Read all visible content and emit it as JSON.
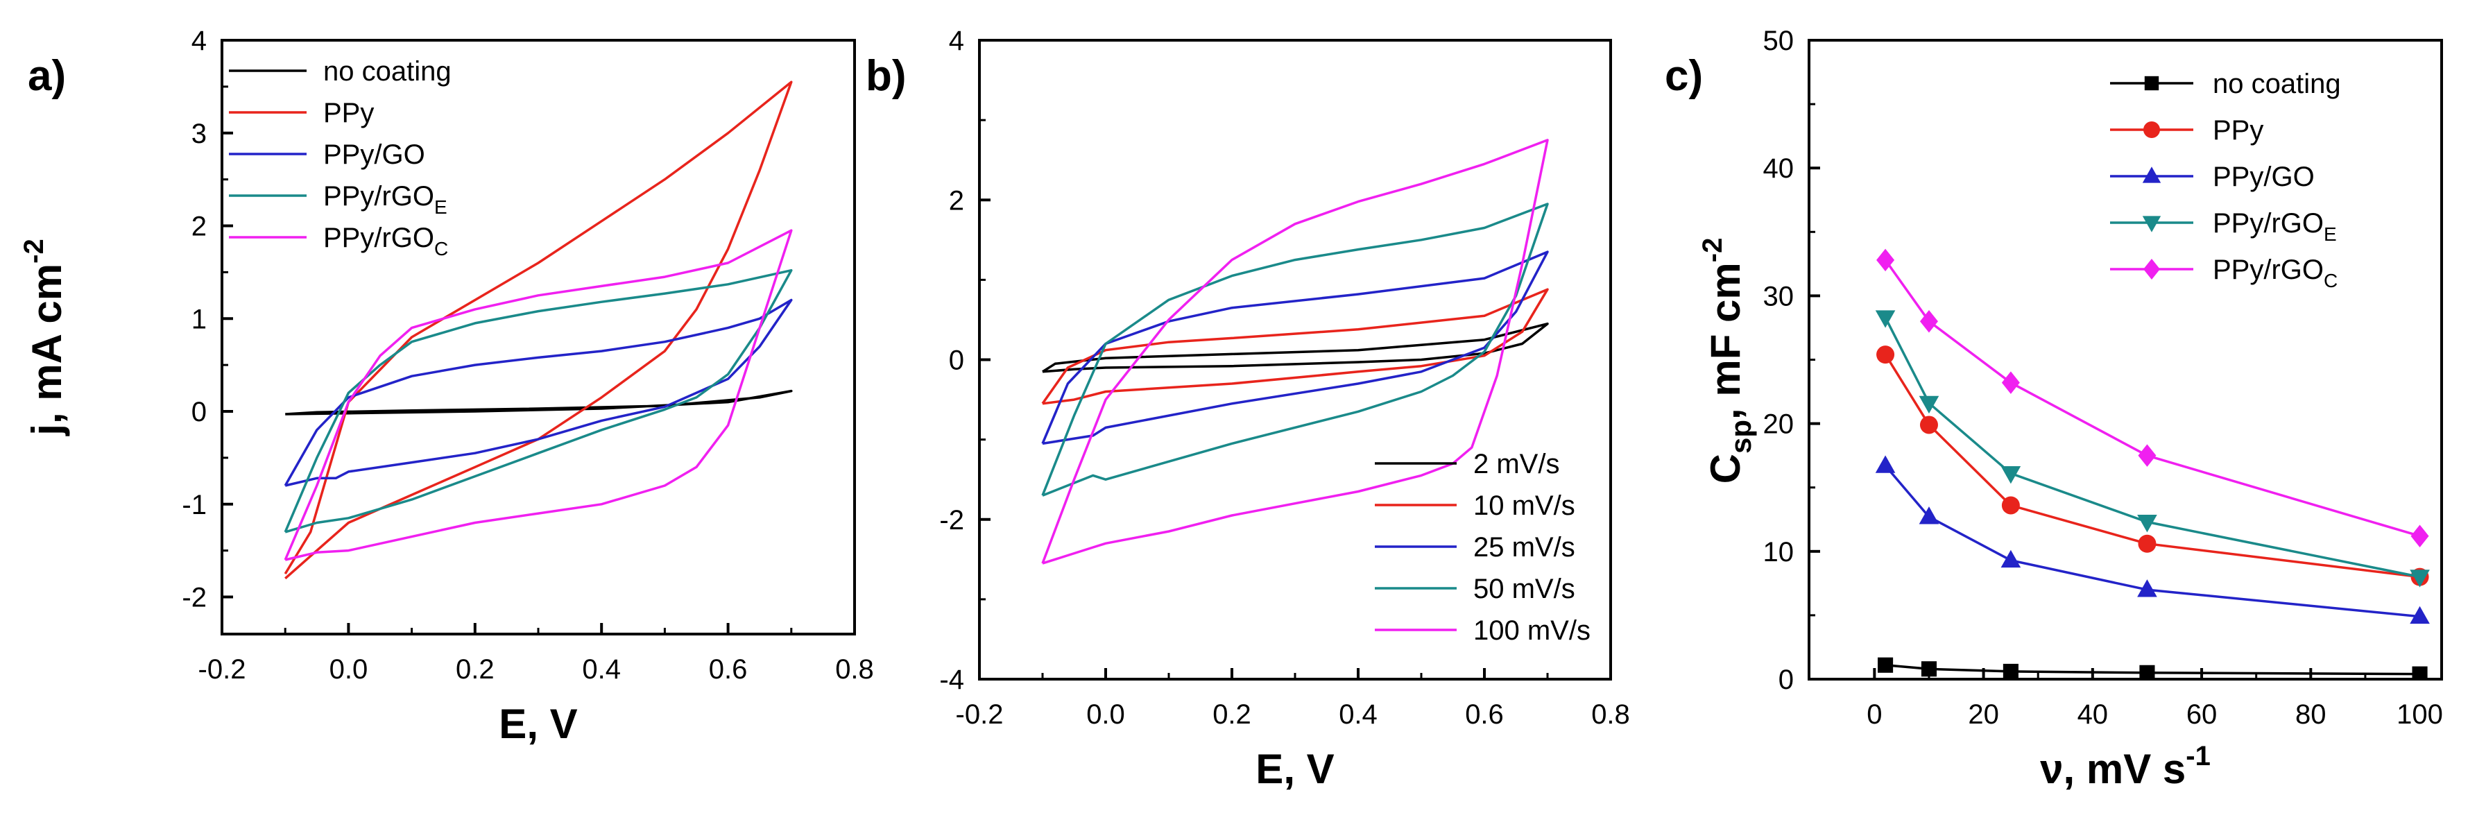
{
  "chart_data": [
    {
      "panel": "a)",
      "type": "line",
      "title": "",
      "xlabel": "E, V",
      "ylabel": "j, mA cm",
      "ylabel_sup": "-2",
      "xlim": [
        -0.2,
        0.8
      ],
      "ylim": [
        -2.4,
        4
      ],
      "xticks": [
        -0.2,
        0.0,
        0.2,
        0.4,
        0.6,
        0.8
      ],
      "xtick_labels": [
        "-0.2",
        "0.0",
        "0.2",
        "0.4",
        "0.6",
        "0.8"
      ],
      "yticks": [
        -2,
        -1,
        0,
        1,
        2,
        3,
        4
      ],
      "ytick_labels": [
        "-2",
        "-1",
        "0",
        "1",
        "2",
        "3",
        "4"
      ],
      "legend_position": "top-left",
      "series": [
        {
          "name": "no coating",
          "sub": "",
          "color": "#000000",
          "x": [
            -0.1,
            0.0,
            0.2,
            0.4,
            0.6,
            0.7,
            0.65,
            0.5,
            0.3,
            0.1,
            -0.05,
            -0.1
          ],
          "y": [
            -0.03,
            -0.02,
            0.0,
            0.03,
            0.1,
            0.22,
            0.15,
            0.06,
            0.03,
            0.01,
            -0.01,
            -0.03
          ]
        },
        {
          "name": "PPy",
          "sub": "",
          "color": "#e8241c",
          "x": [
            -0.1,
            -0.06,
            0.0,
            0.1,
            0.2,
            0.3,
            0.4,
            0.5,
            0.6,
            0.7,
            0.65,
            0.6,
            0.55,
            0.5,
            0.4,
            0.3,
            0.2,
            0.1,
            0.0,
            -0.05,
            -0.1
          ],
          "y": [
            -1.75,
            -1.3,
            0.1,
            0.8,
            1.2,
            1.6,
            2.05,
            2.5,
            3.0,
            3.55,
            2.6,
            1.75,
            1.1,
            0.65,
            0.15,
            -0.3,
            -0.6,
            -0.9,
            -1.2,
            -1.5,
            -1.8
          ]
        },
        {
          "name": "PPy/GO",
          "sub": "",
          "color": "#2323c8",
          "x": [
            -0.1,
            -0.05,
            0.0,
            0.1,
            0.2,
            0.3,
            0.4,
            0.5,
            0.6,
            0.65,
            0.7,
            0.65,
            0.6,
            0.5,
            0.4,
            0.3,
            0.2,
            0.1,
            0.0,
            -0.02,
            -0.05,
            -0.1
          ],
          "y": [
            -0.8,
            -0.2,
            0.15,
            0.38,
            0.5,
            0.58,
            0.65,
            0.75,
            0.9,
            1.0,
            1.2,
            0.7,
            0.35,
            0.05,
            -0.1,
            -0.3,
            -0.45,
            -0.55,
            -0.65,
            -0.72,
            -0.72,
            -0.8
          ]
        },
        {
          "name": "PPy/rGO",
          "sub": "E",
          "color": "#1a8a8a",
          "x": [
            -0.1,
            -0.05,
            0.0,
            0.05,
            0.1,
            0.2,
            0.3,
            0.4,
            0.5,
            0.6,
            0.7,
            0.65,
            0.6,
            0.55,
            0.5,
            0.4,
            0.3,
            0.2,
            0.1,
            0.0,
            -0.05,
            -0.1
          ],
          "y": [
            -1.3,
            -0.5,
            0.2,
            0.5,
            0.75,
            0.95,
            1.08,
            1.18,
            1.27,
            1.37,
            1.52,
            0.9,
            0.4,
            0.15,
            0.02,
            -0.2,
            -0.45,
            -0.7,
            -0.95,
            -1.15,
            -1.2,
            -1.3
          ]
        },
        {
          "name": "PPy/rGO",
          "sub": "C",
          "color": "#f020f0",
          "x": [
            -0.1,
            -0.05,
            0.0,
            0.05,
            0.1,
            0.2,
            0.3,
            0.4,
            0.5,
            0.6,
            0.7,
            0.65,
            0.6,
            0.55,
            0.5,
            0.4,
            0.3,
            0.2,
            0.1,
            0.0,
            -0.05,
            -0.1
          ],
          "y": [
            -1.6,
            -0.8,
            0.1,
            0.6,
            0.9,
            1.1,
            1.25,
            1.35,
            1.45,
            1.6,
            1.95,
            0.9,
            -0.15,
            -0.6,
            -0.8,
            -1.0,
            -1.1,
            -1.2,
            -1.35,
            -1.5,
            -1.52,
            -1.6
          ]
        }
      ]
    },
    {
      "panel": "b)",
      "type": "line",
      "title": "",
      "xlabel": "E, V",
      "ylabel": "",
      "xlim": [
        -0.2,
        0.8
      ],
      "ylim": [
        -4,
        4
      ],
      "xticks": [
        -0.2,
        0.0,
        0.2,
        0.4,
        0.6,
        0.8
      ],
      "xtick_labels": [
        "-0.2",
        "0.0",
        "0.2",
        "0.4",
        "0.6",
        "0.8"
      ],
      "yticks": [
        -4,
        -2,
        0,
        2,
        4
      ],
      "ytick_labels": [
        "-4",
        "-2",
        "0",
        "2",
        "4"
      ],
      "legend_position": "bottom-right",
      "series": [
        {
          "name": "2 mV/s",
          "color": "#000000",
          "x": [
            -0.1,
            -0.08,
            0.0,
            0.2,
            0.4,
            0.6,
            0.7,
            0.66,
            0.6,
            0.5,
            0.4,
            0.2,
            0.0,
            -0.05,
            -0.1
          ],
          "y": [
            -0.15,
            -0.05,
            0.02,
            0.07,
            0.12,
            0.25,
            0.45,
            0.2,
            0.08,
            0.0,
            -0.03,
            -0.08,
            -0.1,
            -0.12,
            -0.15
          ]
        },
        {
          "name": "10 mV/s",
          "color": "#e8241c",
          "x": [
            -0.1,
            -0.06,
            0.0,
            0.1,
            0.2,
            0.4,
            0.6,
            0.7,
            0.66,
            0.6,
            0.5,
            0.4,
            0.2,
            0.0,
            -0.05,
            -0.1
          ],
          "y": [
            -0.55,
            -0.1,
            0.12,
            0.22,
            0.27,
            0.38,
            0.55,
            0.88,
            0.35,
            0.05,
            -0.08,
            -0.15,
            -0.3,
            -0.4,
            -0.5,
            -0.55
          ]
        },
        {
          "name": "25 mV/s",
          "color": "#2323c8",
          "x": [
            -0.1,
            -0.06,
            0.0,
            0.1,
            0.2,
            0.4,
            0.6,
            0.7,
            0.65,
            0.6,
            0.5,
            0.4,
            0.2,
            0.0,
            -0.02,
            -0.1
          ],
          "y": [
            -1.05,
            -0.3,
            0.2,
            0.48,
            0.65,
            0.82,
            1.02,
            1.35,
            0.6,
            0.15,
            -0.15,
            -0.3,
            -0.55,
            -0.85,
            -0.95,
            -1.05
          ]
        },
        {
          "name": "50 mV/s",
          "color": "#1a8a8a",
          "x": [
            -0.1,
            -0.05,
            0.0,
            0.1,
            0.2,
            0.3,
            0.4,
            0.5,
            0.6,
            0.7,
            0.65,
            0.6,
            0.55,
            0.5,
            0.4,
            0.2,
            0.0,
            -0.02,
            -0.1
          ],
          "y": [
            -1.7,
            -0.7,
            0.2,
            0.75,
            1.05,
            1.25,
            1.38,
            1.5,
            1.65,
            1.95,
            0.8,
            0.1,
            -0.2,
            -0.4,
            -0.65,
            -1.05,
            -1.5,
            -1.45,
            -1.7
          ]
        },
        {
          "name": "100 mV/s",
          "color": "#f020f0",
          "x": [
            -0.1,
            -0.05,
            0.0,
            0.1,
            0.2,
            0.3,
            0.4,
            0.5,
            0.6,
            0.7,
            0.66,
            0.62,
            0.58,
            0.55,
            0.5,
            0.4,
            0.3,
            0.2,
            0.1,
            0.0,
            -0.02,
            -0.1
          ],
          "y": [
            -2.55,
            -1.5,
            -0.5,
            0.5,
            1.25,
            1.7,
            1.98,
            2.2,
            2.45,
            2.75,
            1.2,
            -0.2,
            -1.1,
            -1.3,
            -1.45,
            -1.65,
            -1.8,
            -1.95,
            -2.15,
            -2.3,
            -2.35,
            -2.55
          ]
        }
      ]
    },
    {
      "panel": "c)",
      "type": "line",
      "title": "",
      "xlabel": "ν, mV s",
      "xlabel_sup": "-1",
      "ylabel": "C",
      "ylabel_sub": "sp",
      "ylabel_rest": ", mF cm",
      "ylabel_sup": "-2",
      "xlim": [
        -12,
        104
      ],
      "ylim": [
        0,
        50
      ],
      "xticks": [
        0,
        20,
        40,
        60,
        80,
        100
      ],
      "xtick_labels": [
        "0",
        "20",
        "40",
        "60",
        "80",
        "100"
      ],
      "yticks": [
        0,
        10,
        20,
        30,
        40,
        50
      ],
      "ytick_labels": [
        "0",
        "10",
        "20",
        "30",
        "40",
        "50"
      ],
      "legend_position": "top-right",
      "x": [
        2,
        10,
        25,
        50,
        100
      ],
      "series": [
        {
          "name": "no coating",
          "sub": "",
          "color": "#000000",
          "marker": "square",
          "values": [
            1.1,
            0.8,
            0.6,
            0.5,
            0.4
          ]
        },
        {
          "name": "PPy",
          "sub": "",
          "color": "#e8241c",
          "marker": "circle",
          "values": [
            25.4,
            19.9,
            13.6,
            10.6,
            8.0
          ]
        },
        {
          "name": "PPy/GO",
          "sub": "",
          "color": "#2323c8",
          "marker": "triangle-up",
          "values": [
            16.7,
            12.7,
            9.3,
            7.0,
            4.9
          ]
        },
        {
          "name": "PPy/rGO",
          "sub": "E",
          "color": "#1a8a8a",
          "marker": "triangle-down",
          "values": [
            28.3,
            21.6,
            16.1,
            12.3,
            8.0
          ]
        },
        {
          "name": "PPy/rGO",
          "sub": "C",
          "color": "#f020f0",
          "marker": "diamond",
          "values": [
            32.8,
            28.0,
            23.2,
            17.5,
            11.2
          ]
        }
      ]
    }
  ]
}
